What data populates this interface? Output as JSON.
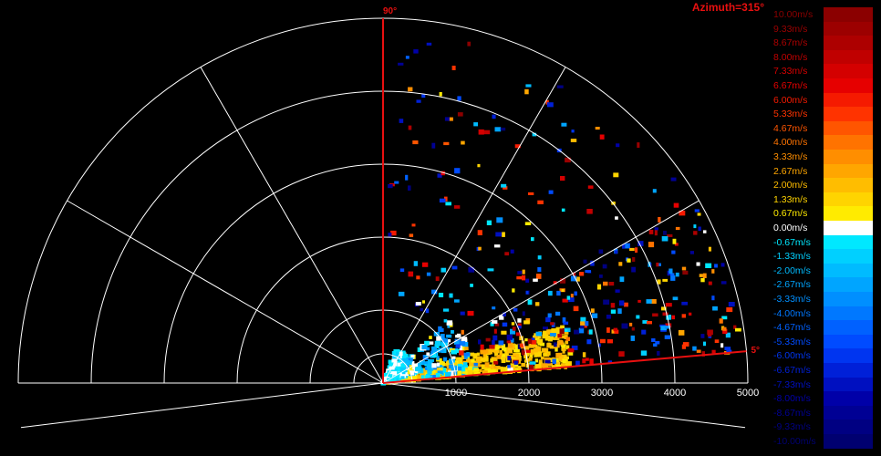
{
  "chart_data": {
    "type": "polar-ppi",
    "title": "Azimuth=315°",
    "range_tick_labels": [
      "1000",
      "2000",
      "3000",
      "4000",
      "5000"
    ],
    "range_max": 5000,
    "elevation_markers": [
      {
        "label": "90°",
        "angle_deg": 90
      },
      {
        "label": "5°",
        "angle_deg": 5
      }
    ],
    "colorbar": {
      "unit": "m/s",
      "range": [
        -10,
        10
      ],
      "labels": [
        "10.00m/s",
        "9.33m/s",
        "8.67m/s",
        "8.00m/s",
        "7.33m/s",
        "6.67m/s",
        "6.00m/s",
        "5.33m/s",
        "4.67m/s",
        "4.00m/s",
        "3.33m/s",
        "2.67m/s",
        "2.00m/s",
        "1.33m/s",
        "0.67m/s",
        "0.00m/s",
        "-0.67m/s",
        "-1.33m/s",
        "-2.00m/s",
        "-2.67m/s",
        "-3.33m/s",
        "-4.00m/s",
        "-4.67m/s",
        "-5.33m/s",
        "-6.00m/s",
        "-6.67m/s",
        "-7.33m/s",
        "-8.00m/s",
        "-8.67m/s",
        "-9.33m/s",
        "-10.00m/s"
      ],
      "colors": [
        "#8b0000",
        "#9c0000",
        "#ad0000",
        "#c00000",
        "#d40000",
        "#e60000",
        "#f51a00",
        "#ff3300",
        "#ff5500",
        "#ff7300",
        "#ff8e00",
        "#ffa600",
        "#ffbd00",
        "#ffd400",
        "#ffeb00",
        "#ffffff",
        "#00e8ff",
        "#00d0ff",
        "#00bbff",
        "#00a5ff",
        "#008fff",
        "#0078ff",
        "#0061ff",
        "#004bff",
        "#0035f0",
        "#0020d8",
        "#0010c0",
        "#0000a8",
        "#000094",
        "#000082",
        "#000070"
      ]
    },
    "echo_clusters": [
      {
        "elev_range": [
          5,
          18
        ],
        "range_range": [
          0,
          2600
        ],
        "velocity_range": [
          0.5,
          2.5
        ],
        "count": 420
      },
      {
        "elev_range": [
          15,
          70
        ],
        "range_range": [
          0,
          500
        ],
        "velocity_range": [
          -1.5,
          0.3
        ],
        "count": 260
      },
      {
        "elev_range": [
          6,
          45
        ],
        "range_range": [
          400,
          1300
        ],
        "velocity_range": [
          -4,
          1
        ],
        "count": 150
      },
      {
        "elev_range": [
          5,
          30
        ],
        "range_range": [
          1400,
          4950
        ],
        "velocity_range": [
          -10,
          10
        ],
        "count": 230
      },
      {
        "elev_range": [
          20,
          89
        ],
        "range_range": [
          1000,
          4900
        ],
        "velocity_range": [
          -10,
          10
        ],
        "count": 150
      }
    ]
  }
}
